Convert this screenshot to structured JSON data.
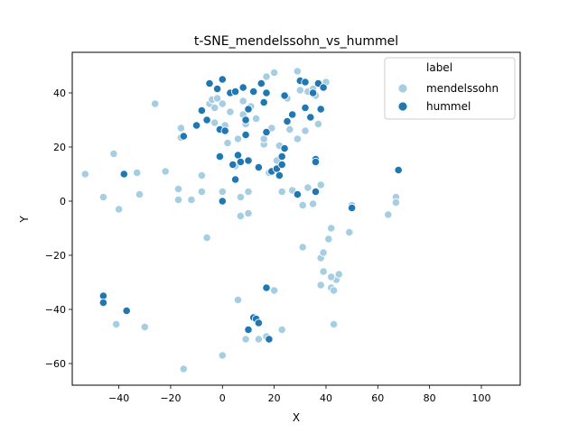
{
  "chart_data": {
    "type": "scatter",
    "title": "t-SNE_mendelssohn_vs_hummel",
    "xlabel": "X",
    "ylabel": "Y",
    "xlim": [
      -58,
      115
    ],
    "ylim": [
      -68,
      55
    ],
    "xticks": [
      -40,
      -20,
      0,
      20,
      40,
      60,
      80,
      100
    ],
    "yticks": [
      -60,
      -40,
      -20,
      0,
      20,
      40
    ],
    "grid": false,
    "legend": {
      "title": "label",
      "position": "top-right"
    },
    "series": [
      {
        "name": "mendelssohn",
        "color": "#a6cee3",
        "points": [
          [
            -53,
            10
          ],
          [
            -46,
            1.5
          ],
          [
            -42,
            17.5
          ],
          [
            -40,
            -3
          ],
          [
            -33,
            10.5
          ],
          [
            -32,
            2.5
          ],
          [
            -26,
            36
          ],
          [
            -22,
            11
          ],
          [
            -17,
            4.5
          ],
          [
            -17,
            0.5
          ],
          [
            -16,
            23.5
          ],
          [
            -16,
            27
          ],
          [
            -12,
            0.5
          ],
          [
            -8,
            9.5
          ],
          [
            -8,
            3.5
          ],
          [
            -6,
            -13.5
          ],
          [
            -5,
            36
          ],
          [
            -4,
            37.5
          ],
          [
            -3,
            34.5
          ],
          [
            -3,
            29
          ],
          [
            -2,
            38
          ],
          [
            0,
            36
          ],
          [
            0,
            3.5
          ],
          [
            1,
            28
          ],
          [
            2,
            21.5
          ],
          [
            3,
            33
          ],
          [
            5,
            13
          ],
          [
            6,
            23
          ],
          [
            7,
            1.5
          ],
          [
            7,
            -5.5
          ],
          [
            8,
            37
          ],
          [
            8,
            32
          ],
          [
            9,
            28.5
          ],
          [
            10,
            3.5
          ],
          [
            10,
            -4.5
          ],
          [
            11,
            35
          ],
          [
            13,
            30.5
          ],
          [
            16,
            21
          ],
          [
            16,
            23
          ],
          [
            17,
            46
          ],
          [
            18,
            10.5
          ],
          [
            19,
            27
          ],
          [
            20,
            47.5
          ],
          [
            21,
            15
          ],
          [
            22,
            20.5
          ],
          [
            23,
            3.5
          ],
          [
            25,
            38
          ],
          [
            26,
            26.5
          ],
          [
            27,
            4
          ],
          [
            29,
            48
          ],
          [
            29,
            23
          ],
          [
            30,
            41
          ],
          [
            31,
            -1.5
          ],
          [
            32,
            26
          ],
          [
            33,
            40.5
          ],
          [
            35,
            41.5
          ],
          [
            36,
            39
          ],
          [
            37,
            28.5
          ],
          [
            38,
            6
          ],
          [
            38,
            -21
          ],
          [
            38,
            -31
          ],
          [
            39,
            -26
          ],
          [
            40,
            44
          ],
          [
            41,
            -14
          ],
          [
            42,
            -32
          ],
          [
            42,
            -10
          ],
          [
            43,
            -33
          ],
          [
            43,
            -45.5
          ],
          [
            44,
            -29
          ],
          [
            45,
            -27
          ],
          [
            49,
            -11.5
          ],
          [
            50,
            -1.5
          ],
          [
            64,
            -5
          ],
          [
            67,
            1.5
          ],
          [
            67,
            -0.5
          ],
          [
            -41,
            -45.5
          ],
          [
            -30,
            -46.5
          ],
          [
            -15,
            -62
          ],
          [
            0,
            -57
          ],
          [
            6,
            -36.5
          ],
          [
            9,
            -51
          ],
          [
            14,
            -51
          ],
          [
            17,
            -50
          ],
          [
            20,
            -33
          ],
          [
            23,
            -47.5
          ],
          [
            31,
            -17
          ],
          [
            33,
            5
          ],
          [
            35,
            -1
          ],
          [
            39,
            -19
          ],
          [
            42,
            -28
          ]
        ]
      },
      {
        "name": "hummel",
        "color": "#1f78b4",
        "points": [
          [
            -46,
            -35
          ],
          [
            -46,
            -37.5
          ],
          [
            -38,
            10
          ],
          [
            -37,
            -40.5
          ],
          [
            -15,
            24
          ],
          [
            -10,
            28
          ],
          [
            -8,
            33.5
          ],
          [
            -6,
            30
          ],
          [
            -5,
            43.5
          ],
          [
            -2,
            41.5
          ],
          [
            -1,
            26.5
          ],
          [
            -1,
            16.5
          ],
          [
            0,
            0
          ],
          [
            0,
            45
          ],
          [
            1,
            26
          ],
          [
            3,
            40
          ],
          [
            4,
            13.5
          ],
          [
            5,
            40.5
          ],
          [
            5,
            8
          ],
          [
            6,
            17
          ],
          [
            7,
            14.5
          ],
          [
            8,
            42
          ],
          [
            9,
            30
          ],
          [
            9,
            24.5
          ],
          [
            10,
            34
          ],
          [
            10,
            15
          ],
          [
            12,
            40.5
          ],
          [
            14,
            12.5
          ],
          [
            15,
            43.5
          ],
          [
            16,
            36.5
          ],
          [
            17,
            25.5
          ],
          [
            17,
            -32
          ],
          [
            17,
            40
          ],
          [
            18,
            -51
          ],
          [
            19,
            11
          ],
          [
            21,
            12
          ],
          [
            22,
            9.5
          ],
          [
            23,
            16.5
          ],
          [
            23,
            13.5
          ],
          [
            24,
            39
          ],
          [
            24,
            19.5
          ],
          [
            25,
            29.5
          ],
          [
            27,
            32
          ],
          [
            29,
            2.5
          ],
          [
            30,
            44.5
          ],
          [
            32,
            44
          ],
          [
            32,
            34.5
          ],
          [
            34,
            31
          ],
          [
            35,
            40
          ],
          [
            36,
            15.5
          ],
          [
            36,
            3.5
          ],
          [
            36,
            14.5
          ],
          [
            37,
            43.5
          ],
          [
            38,
            34
          ],
          [
            39,
            42
          ],
          [
            50,
            -2.5
          ],
          [
            68,
            11.5
          ],
          [
            10,
            -47.5
          ],
          [
            12,
            -43
          ],
          [
            13,
            -43.5
          ],
          [
            14,
            -45
          ]
        ]
      }
    ]
  }
}
